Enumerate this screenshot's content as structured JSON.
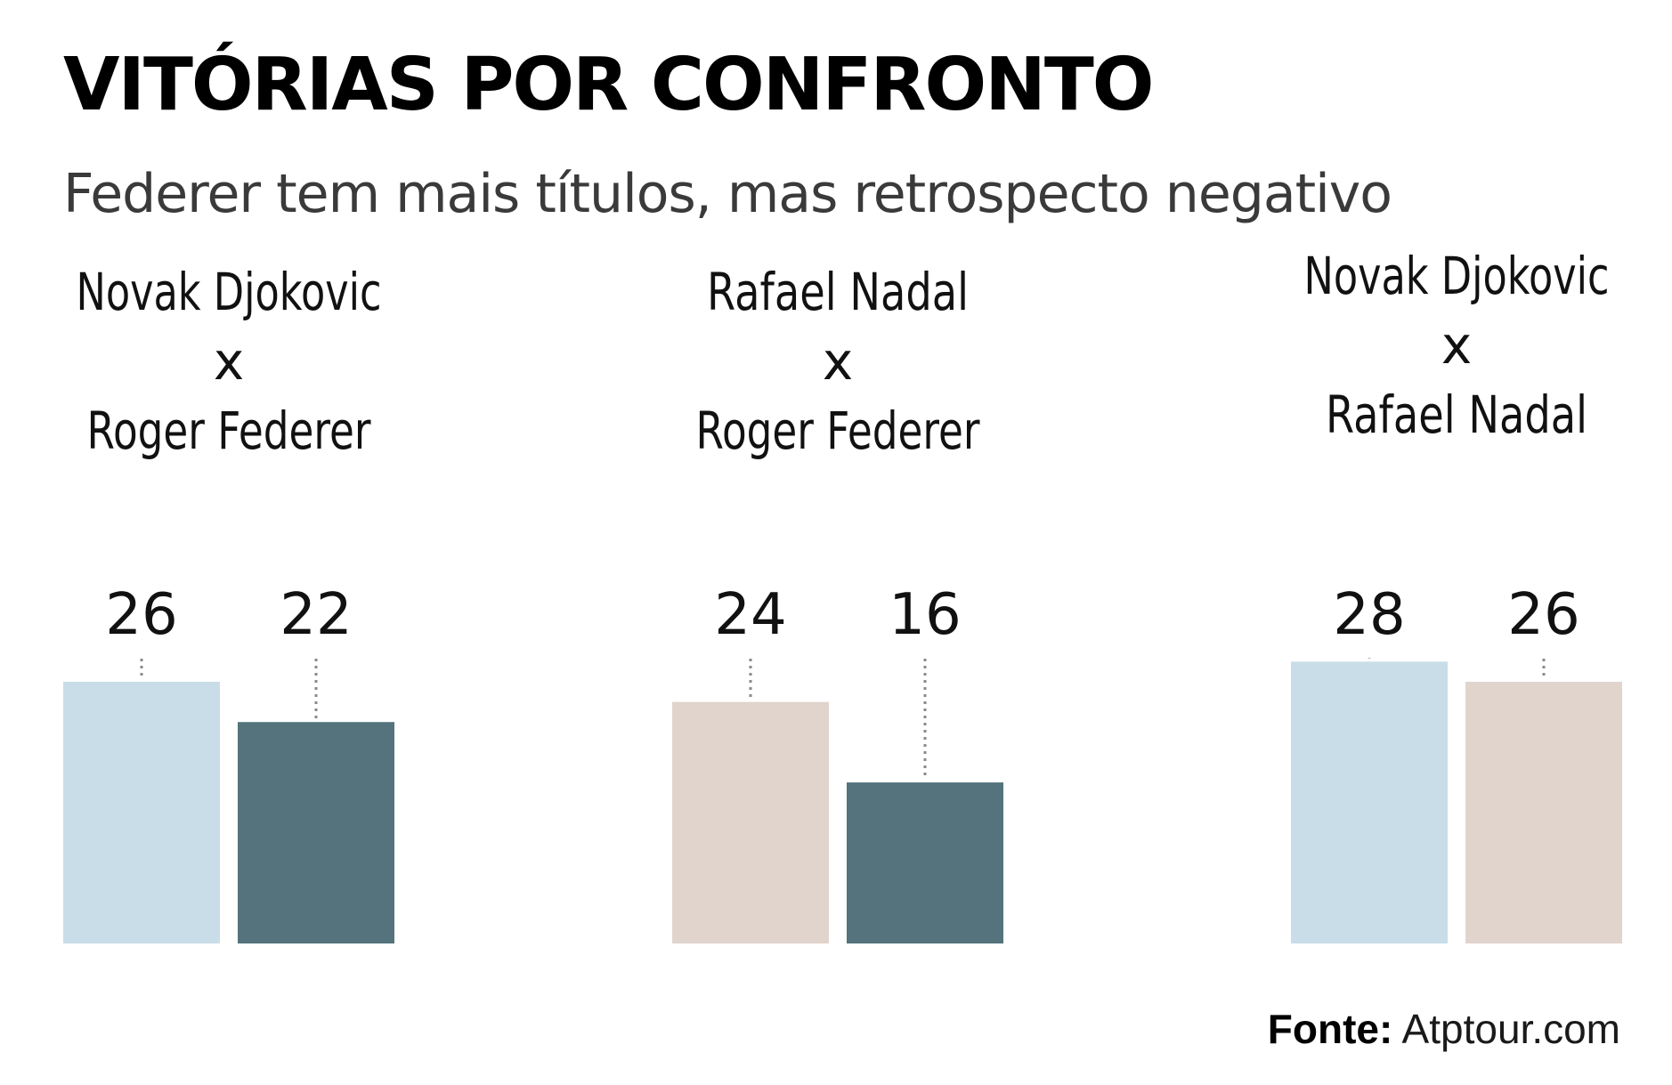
{
  "chart_data": {
    "type": "bar",
    "title": "VITÓRIAS POR CONFRONTO",
    "subtitle": "Federer tem mais títulos, mas retrospecto negativo",
    "ylim": [
      0,
      30
    ],
    "grid": false,
    "colors": {
      "Novak Djokovic": "#c8dde7",
      "Roger Federer": "#54737c",
      "Rafael Nadal": "#e1d4cd"
    },
    "groups": [
      {
        "label_lines": [
          "Novak Djokovic",
          "x",
          "Roger Federer"
        ],
        "bars": [
          {
            "player": "Novak Djokovic",
            "value": 26,
            "label": "26"
          },
          {
            "player": "Roger Federer",
            "value": 22,
            "label": "22"
          }
        ]
      },
      {
        "label_lines": [
          "Rafael Nadal",
          "x",
          "Roger Federer"
        ],
        "bars": [
          {
            "player": "Rafael Nadal",
            "value": 24,
            "label": "24"
          },
          {
            "player": "Roger Federer",
            "value": 16,
            "label": "16"
          }
        ]
      },
      {
        "label_lines": [
          "Novak Djokovic",
          "x",
          "Rafael Nadal"
        ],
        "bars": [
          {
            "player": "Novak Djokovic",
            "value": 28,
            "label": "28"
          },
          {
            "player": "Rafael Nadal",
            "value": 26,
            "label": "26"
          }
        ]
      }
    ],
    "source_label": "Fonte:",
    "source": "Atptour.com"
  }
}
